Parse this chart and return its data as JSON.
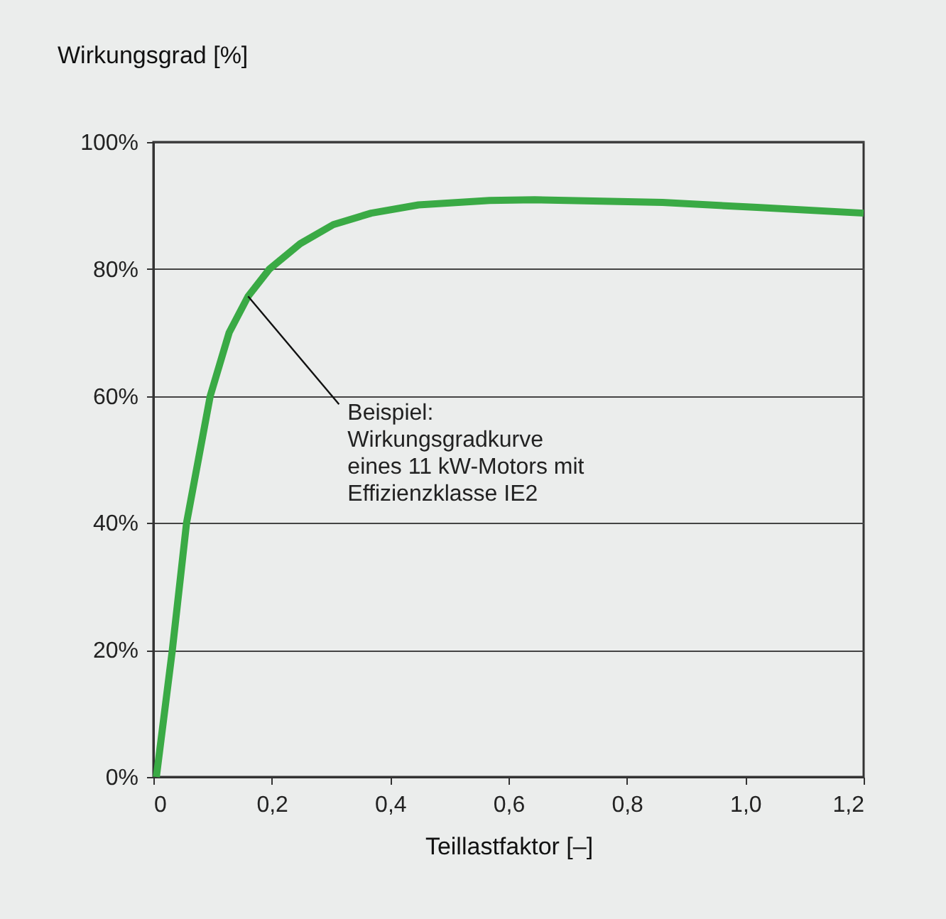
{
  "chart_data": {
    "type": "line",
    "xlabel": "Teillastfaktor [–]",
    "ylabel": "Wirkungsgrad [%]",
    "x": [
      0.005,
      0.032,
      0.056,
      0.096,
      0.128,
      0.16,
      0.196,
      0.248,
      0.304,
      0.368,
      0.448,
      0.568,
      0.644,
      0.86,
      1.02,
      1.2
    ],
    "series": [
      {
        "color": "#3aaa45",
        "values": [
          0,
          20,
          40,
          60,
          70,
          75.7,
          80,
          84,
          87,
          88.8,
          90.1,
          90.8,
          90.9,
          90.5,
          89.7,
          88.8
        ]
      }
    ],
    "xlim": [
      0,
      1.2
    ],
    "ylim": [
      0,
      100
    ],
    "xticks": [
      0,
      {
        "value": 0.2,
        "label": "0,2"
      },
      {
        "value": 0.4,
        "label": "0,4"
      },
      {
        "value": 0.6,
        "label": "0,6"
      },
      {
        "value": 0.8,
        "label": "0,8"
      },
      {
        "value": 1.0,
        "label": "1,0"
      },
      {
        "value": 1.2,
        "label": "1,2"
      }
    ],
    "yticks": [
      {
        "value": 0,
        "label": "0%"
      },
      {
        "value": 20,
        "label": "20%"
      },
      {
        "value": 40,
        "label": "40%"
      },
      {
        "value": 60,
        "label": "60%"
      },
      {
        "value": 80,
        "label": "80%"
      },
      {
        "value": 100,
        "label": "100%"
      }
    ],
    "grid": "y",
    "marker": "none",
    "line_style": "solid",
    "annotations": [
      {
        "text": "Beispiel:\nWirkungsgradkurve\neines 11 kW-Motors mit\nEffizienzklasse IE2",
        "x": 0.16,
        "y": 75.7
      }
    ]
  }
}
